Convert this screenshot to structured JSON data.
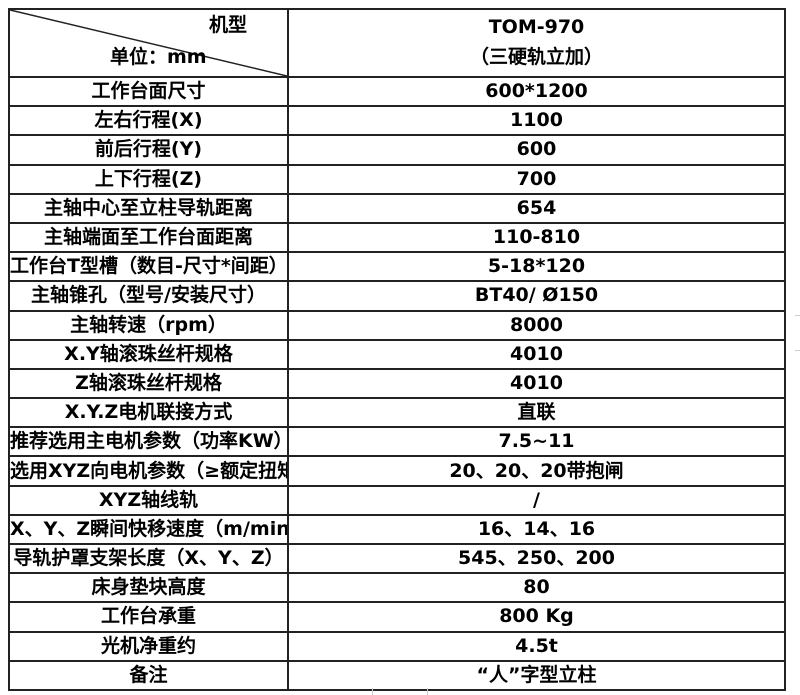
{
  "header": {
    "corner_top": "机型",
    "corner_bottom": "单位：mm",
    "model": "TOM-970",
    "model_sub": "（三硬轨立加）"
  },
  "rows": [
    {
      "label": "工作台面尺寸",
      "value": "600*1200"
    },
    {
      "label": "左右行程(X)",
      "value": "1100"
    },
    {
      "label": "前后行程(Y)",
      "value": "600"
    },
    {
      "label": "上下行程(Z)",
      "value": "700"
    },
    {
      "label": "主轴中心至立柱导轨距离",
      "value": "654"
    },
    {
      "label": "主轴端面至工作台面距离",
      "value": "110-810"
    },
    {
      "label": "工作台T型槽（数目-尺寸*间距）",
      "value": "5-18*120"
    },
    {
      "label": "主轴锥孔（型号/安装尺寸）",
      "value": "BT40/ Ø150"
    },
    {
      "label": "主轴转速（rpm）",
      "value": "8000"
    },
    {
      "label": "X.Y轴滚珠丝杆规格",
      "value": "4010"
    },
    {
      "label": "Z轴滚珠丝杆规格",
      "value": "4010"
    },
    {
      "label": "X.Y.Z电机联接方式",
      "value": "直联"
    },
    {
      "label": "推荐选用主电机参数（功率KW）",
      "value": "7.5~11"
    },
    {
      "label": "选用XYZ向电机参数（≥额定扭矩NM）",
      "value": "20、20、20带抱闸"
    },
    {
      "label": "XYZ轴线轨",
      "value": "/"
    },
    {
      "label": "X、Y、Z瞬间快移速度（m/min）",
      "value": "16、14、16"
    },
    {
      "label": "导轨护罩支架长度（X、Y、Z）",
      "value": "545、250、200"
    },
    {
      "label": "床身垫块高度",
      "value": "80"
    },
    {
      "label": "工作台承重",
      "value": "800 Kg"
    },
    {
      "label": "光机净重约",
      "value": "4.5t"
    },
    {
      "label": "备注",
      "value": "“人”字型立柱"
    }
  ]
}
